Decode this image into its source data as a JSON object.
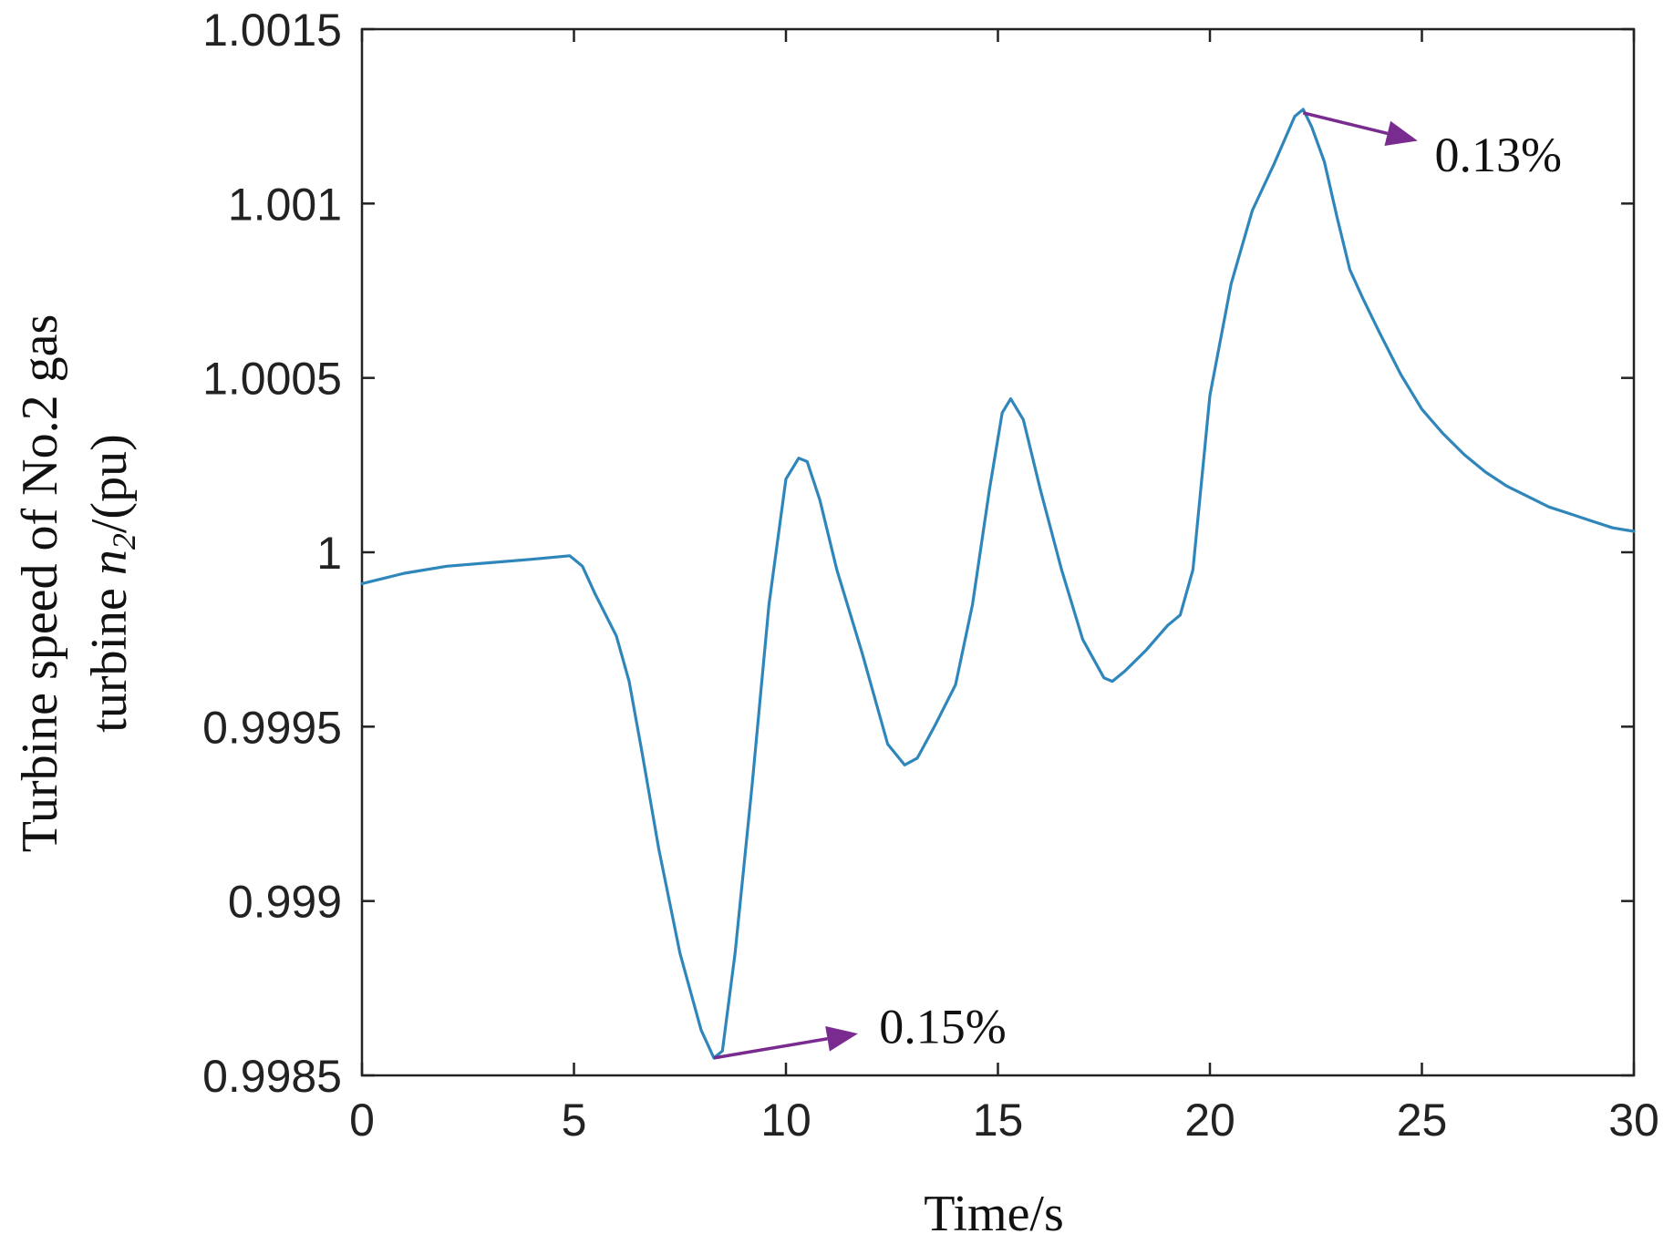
{
  "chart_data": {
    "type": "line",
    "xlabel": "Time/s",
    "ylabel_line1": "Turbine speed of No.2 gas",
    "ylabel_line2_prefix": "turbine ",
    "ylabel_symbol": "n",
    "ylabel_subscript": "2",
    "ylabel_suffix": "/(pu)",
    "xlim": [
      0,
      30
    ],
    "ylim": [
      0.9985,
      1.0015
    ],
    "xticks": [
      0,
      5,
      10,
      15,
      20,
      25,
      30
    ],
    "xtick_labels": [
      "0",
      "5",
      "10",
      "15",
      "20",
      "25",
      "30"
    ],
    "yticks": [
      0.9985,
      0.999,
      0.9995,
      1.0,
      1.0005,
      1.001,
      1.0015
    ],
    "ytick_labels": [
      "0.9985",
      "0.999",
      "0.9995",
      "1",
      "1.0005",
      "1.001",
      "1.0015"
    ],
    "grid": false,
    "box": true,
    "series": [
      {
        "color": "#2f86bb",
        "x": [
          0,
          1,
          2,
          3,
          4,
          4.9,
          5.2,
          5.5,
          6,
          6.3,
          6.6,
          7,
          7.5,
          8,
          8.3,
          8.5,
          8.8,
          9.2,
          9.6,
          10,
          10.3,
          10.5,
          10.8,
          11.2,
          11.8,
          12.4,
          12.8,
          13.1,
          13.5,
          14,
          14.4,
          14.8,
          15.1,
          15.3,
          15.6,
          16,
          16.5,
          17,
          17.5,
          17.7,
          18,
          18.5,
          19,
          19.2,
          19.3,
          19.6,
          20,
          20.5,
          21,
          21.5,
          22,
          22.2,
          22.4,
          22.7,
          23,
          23.3,
          23.6,
          24,
          24.5,
          25,
          25.5,
          26,
          26.5,
          27,
          27.5,
          28,
          28.5,
          29,
          29.5,
          30
        ],
        "values": [
          0.99991,
          0.99994,
          0.99996,
          0.99997,
          0.99998,
          0.99999,
          0.99996,
          0.99988,
          0.99976,
          0.99963,
          0.99943,
          0.99915,
          0.99885,
          0.99863,
          0.99855,
          0.99857,
          0.99885,
          0.99933,
          0.99985,
          1.00021,
          1.00027,
          1.00026,
          1.00015,
          0.99995,
          0.99971,
          0.99945,
          0.99939,
          0.99941,
          0.9995,
          0.99962,
          0.99985,
          1.00018,
          1.0004,
          1.00044,
          1.00038,
          1.00018,
          0.99995,
          0.99975,
          0.99964,
          0.99963,
          0.99966,
          0.99972,
          0.99979,
          0.99981,
          0.99982,
          0.99995,
          1.00045,
          1.00077,
          1.00098,
          1.00111,
          1.00125,
          1.00127,
          1.00122,
          1.00112,
          1.00096,
          1.00081,
          1.00073,
          1.00063,
          1.00051,
          1.00041,
          1.00034,
          1.00028,
          1.00023,
          1.00019,
          1.00016,
          1.00013,
          1.00011,
          1.00009,
          1.00007,
          1.00006
        ]
      }
    ],
    "annotations": [
      {
        "text": "0.15%",
        "point": [
          8.3,
          0.99855
        ],
        "arrow_end": [
          11.7,
          0.99862
        ],
        "text_at": [
          12.2,
          0.99864
        ],
        "color": "#7a2b8f"
      },
      {
        "text": "0.13%",
        "point": [
          22.2,
          1.00126
        ],
        "arrow_end": [
          24.9,
          1.00118
        ],
        "text_at": [
          25.3,
          1.00114
        ],
        "color": "#7a2b8f"
      }
    ]
  }
}
